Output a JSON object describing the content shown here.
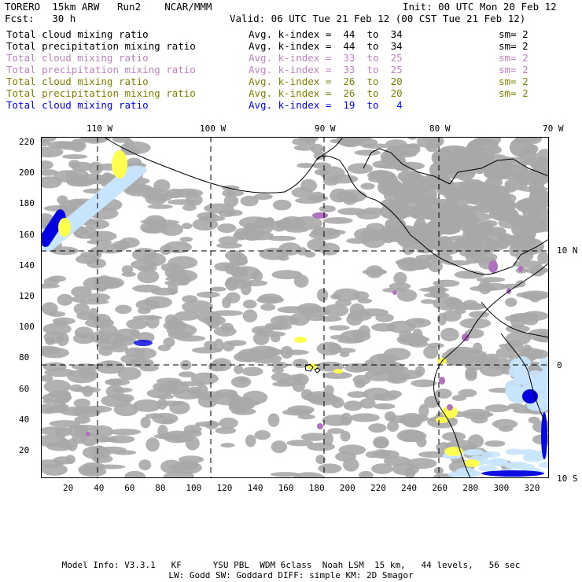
{
  "header": {
    "model": "TORERO  15km ARW   Run2    NCAR/MMM",
    "init": "Init: 00 UTC Mon 20 Feb 12",
    "fcst": "Fcst:   30 h",
    "valid": "Valid: 06 UTC Tue 21 Feb 12 (00 CST Tue 21 Feb 12)"
  },
  "legend": [
    {
      "variable": "Total cloud mixing ratio",
      "avg": "Avg. k-index =  44  to  34",
      "sm": "sm= 2",
      "color": "#000000"
    },
    {
      "variable": "Total precipitation mixing ratio",
      "avg": "Avg. k-index =  44  to  34",
      "sm": "sm= 2",
      "color": "#000000"
    },
    {
      "variable": "Total cloud mixing ratio",
      "avg": "Avg. k-index =  33  to  25",
      "sm": "sm= 2",
      "color": "#c080c0"
    },
    {
      "variable": "Total precipitation mixing ratio",
      "avg": "Avg. k-index =  33  to  25",
      "sm": "sm= 2",
      "color": "#c080c0"
    },
    {
      "variable": "Total cloud mixing ratio",
      "avg": "Avg. k-index =  26  to  20",
      "sm": "sm= 2",
      "color": "#808000"
    },
    {
      "variable": "Total precipitation mixing ratio",
      "avg": "Avg. k-index =  26  to  20",
      "sm": "sm= 2",
      "color": "#808000"
    },
    {
      "variable": "Total cloud mixing ratio",
      "avg": "Avg. k-index =  19  to   4",
      "sm": "",
      "color": "#0000ff"
    }
  ],
  "axes": {
    "lon_labels": [
      "110 W",
      "100 W",
      "90 W",
      "80 W",
      "70 W"
    ],
    "lat_labels": [
      "10 N",
      "0",
      "10 S"
    ],
    "y_ticks": [
      "220",
      "200",
      "180",
      "160",
      "140",
      "120",
      "100",
      "80",
      "60",
      "40",
      "20"
    ],
    "x_ticks": [
      "20",
      "40",
      "60",
      "80",
      "100",
      "120",
      "140",
      "160",
      "180",
      "200",
      "220",
      "240",
      "260",
      "280",
      "300",
      "320"
    ]
  },
  "footer": {
    "line1": "Model Info: V3.3.1   KF      YSU PBL  WDM 6class  Noah LSM  15 km,   44 levels,   56 sec",
    "line2": "LW: Godd SW: Goddard DIFF: simple KM: 2D Smagor"
  },
  "colors": {
    "cloud_gray": "#a8a8a8",
    "precip_purple": "#b070c0",
    "precip_yellow": "#ffff50",
    "cloud_lightblue": "#c8e4ff",
    "cloud_blue": "#0000e0"
  }
}
